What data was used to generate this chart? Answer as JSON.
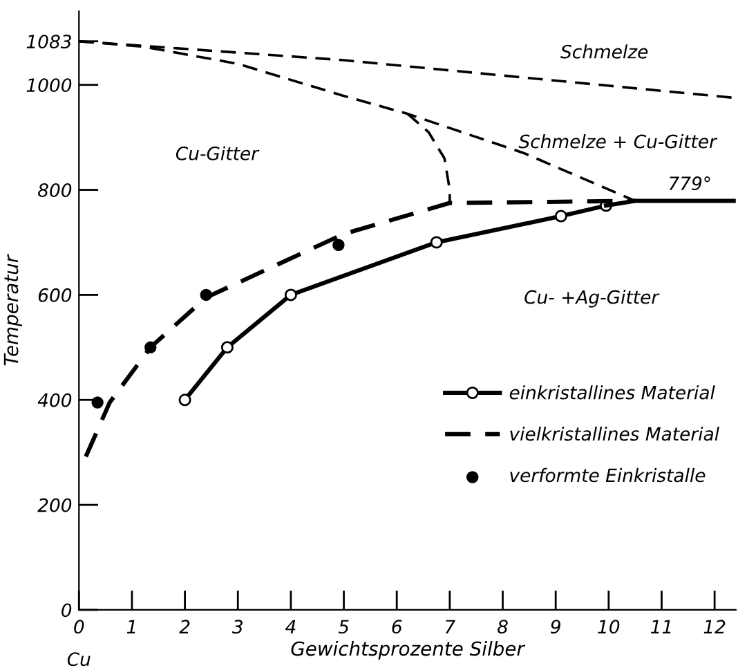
{
  "chart_data": {
    "type": "line",
    "xlabel": "Gewichtsprozente Silber",
    "ylabel": "Temperatur",
    "xlim": [
      0,
      12.4
    ],
    "ylim": [
      0,
      1140
    ],
    "xticks": [
      0,
      1,
      2,
      3,
      4,
      5,
      6,
      7,
      8,
      9,
      10,
      11,
      12
    ],
    "yticks": [
      0,
      200,
      400,
      600,
      800,
      1000,
      1083
    ],
    "grid": false,
    "legend": "bottom right",
    "series": [
      {
        "name": "einkristallines Material",
        "color": "#000000",
        "marker": "circle",
        "line_style": "solid",
        "x": [
          2,
          2.8,
          4,
          6.75,
          9.1,
          9.95
        ],
        "values": [
          400,
          500,
          600,
          700,
          750,
          770
        ]
      },
      {
        "color": "#000000",
        "marker": "none",
        "line_style": "solid",
        "x": [
          9.95,
          10.5,
          12.4
        ],
        "values": [
          770,
          779,
          779
        ]
      },
      {
        "name": "vielkristallines Material",
        "color": "#000000",
        "marker": "none",
        "line_style": "dashed",
        "x": [
          0.13,
          0.58,
          1.35,
          2.4,
          5,
          7,
          10.5
        ],
        "values": [
          292,
          395,
          500,
          595,
          716,
          775,
          779
        ]
      },
      {
        "name": "verformte Einkristalle",
        "color": "#000000",
        "type": "scatter",
        "marker": "circle",
        "x": [
          0.35,
          1.35,
          2.4,
          4.9
        ],
        "values": [
          395,
          500,
          600,
          695
        ]
      },
      {
        "color": "#000000",
        "marker": "none",
        "line_style": "dashed",
        "x": [
          0,
          1.2,
          3,
          5,
          6.2,
          8.4,
          10.5
        ],
        "values": [
          1083,
          1073,
          1040,
          979,
          945,
          870,
          779
        ]
      },
      {
        "color": "#000000",
        "marker": "none",
        "line_style": "dashed",
        "x": [
          6.2,
          6.6,
          6.9,
          7,
          7
        ],
        "values": [
          945,
          910,
          860,
          800,
          775
        ]
      },
      {
        "color": "#000000",
        "marker": "none",
        "line_style": "dashed",
        "x": [
          0,
          5,
          12.4
        ],
        "values": [
          1083,
          1047,
          975
        ]
      }
    ],
    "annotations": [
      "Schmelze",
      "Schmelze + Cu-Gitter",
      "Cu-Gitter",
      "Cu- +Ag-Gitter",
      "779°",
      "Cu"
    ]
  }
}
